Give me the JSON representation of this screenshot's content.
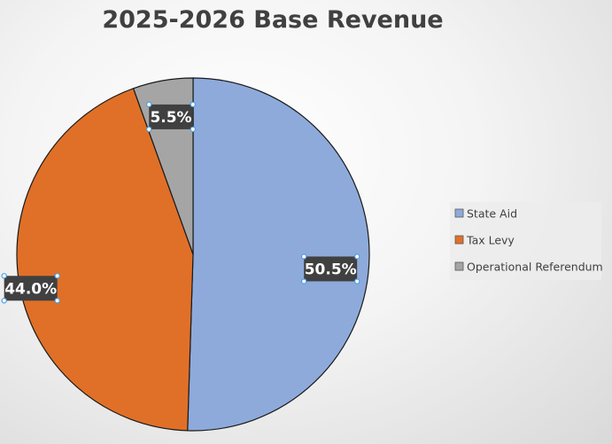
{
  "chart_data": {
    "type": "pie",
    "title": "2025-2026 Base Revenue",
    "categories": [
      "State Aid",
      "Tax Levy",
      "Operational Referendum"
    ],
    "values": [
      50.5,
      44.0,
      5.5
    ],
    "data_labels": [
      "50.5%",
      "44.0%",
      "5.5%"
    ],
    "colors": [
      "#8eaadb",
      "#e07028",
      "#a5a5a5"
    ],
    "legend_position": "right",
    "start_angle_deg": 0,
    "direction": "clockwise"
  }
}
